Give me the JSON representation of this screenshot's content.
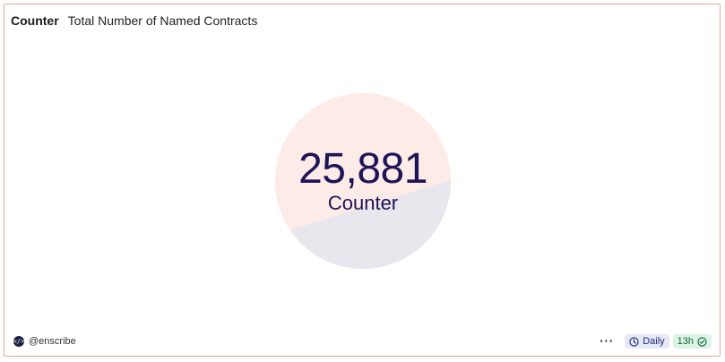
{
  "card": {
    "type_label": "Counter",
    "title": "Total Number of Named Contracts"
  },
  "counter": {
    "value": "25,881",
    "label": "Counter",
    "colors": {
      "top": "#fdebe7",
      "bottom": "#e8e7ee",
      "text": "#1e1457"
    }
  },
  "footer": {
    "author": "@enscribe",
    "author_icon": "code-icon",
    "more_label": "···",
    "schedule_label": "Daily",
    "schedule_icon": "clock-icon",
    "freshness_label": "13h",
    "freshness_icon": "check-circle-icon"
  }
}
